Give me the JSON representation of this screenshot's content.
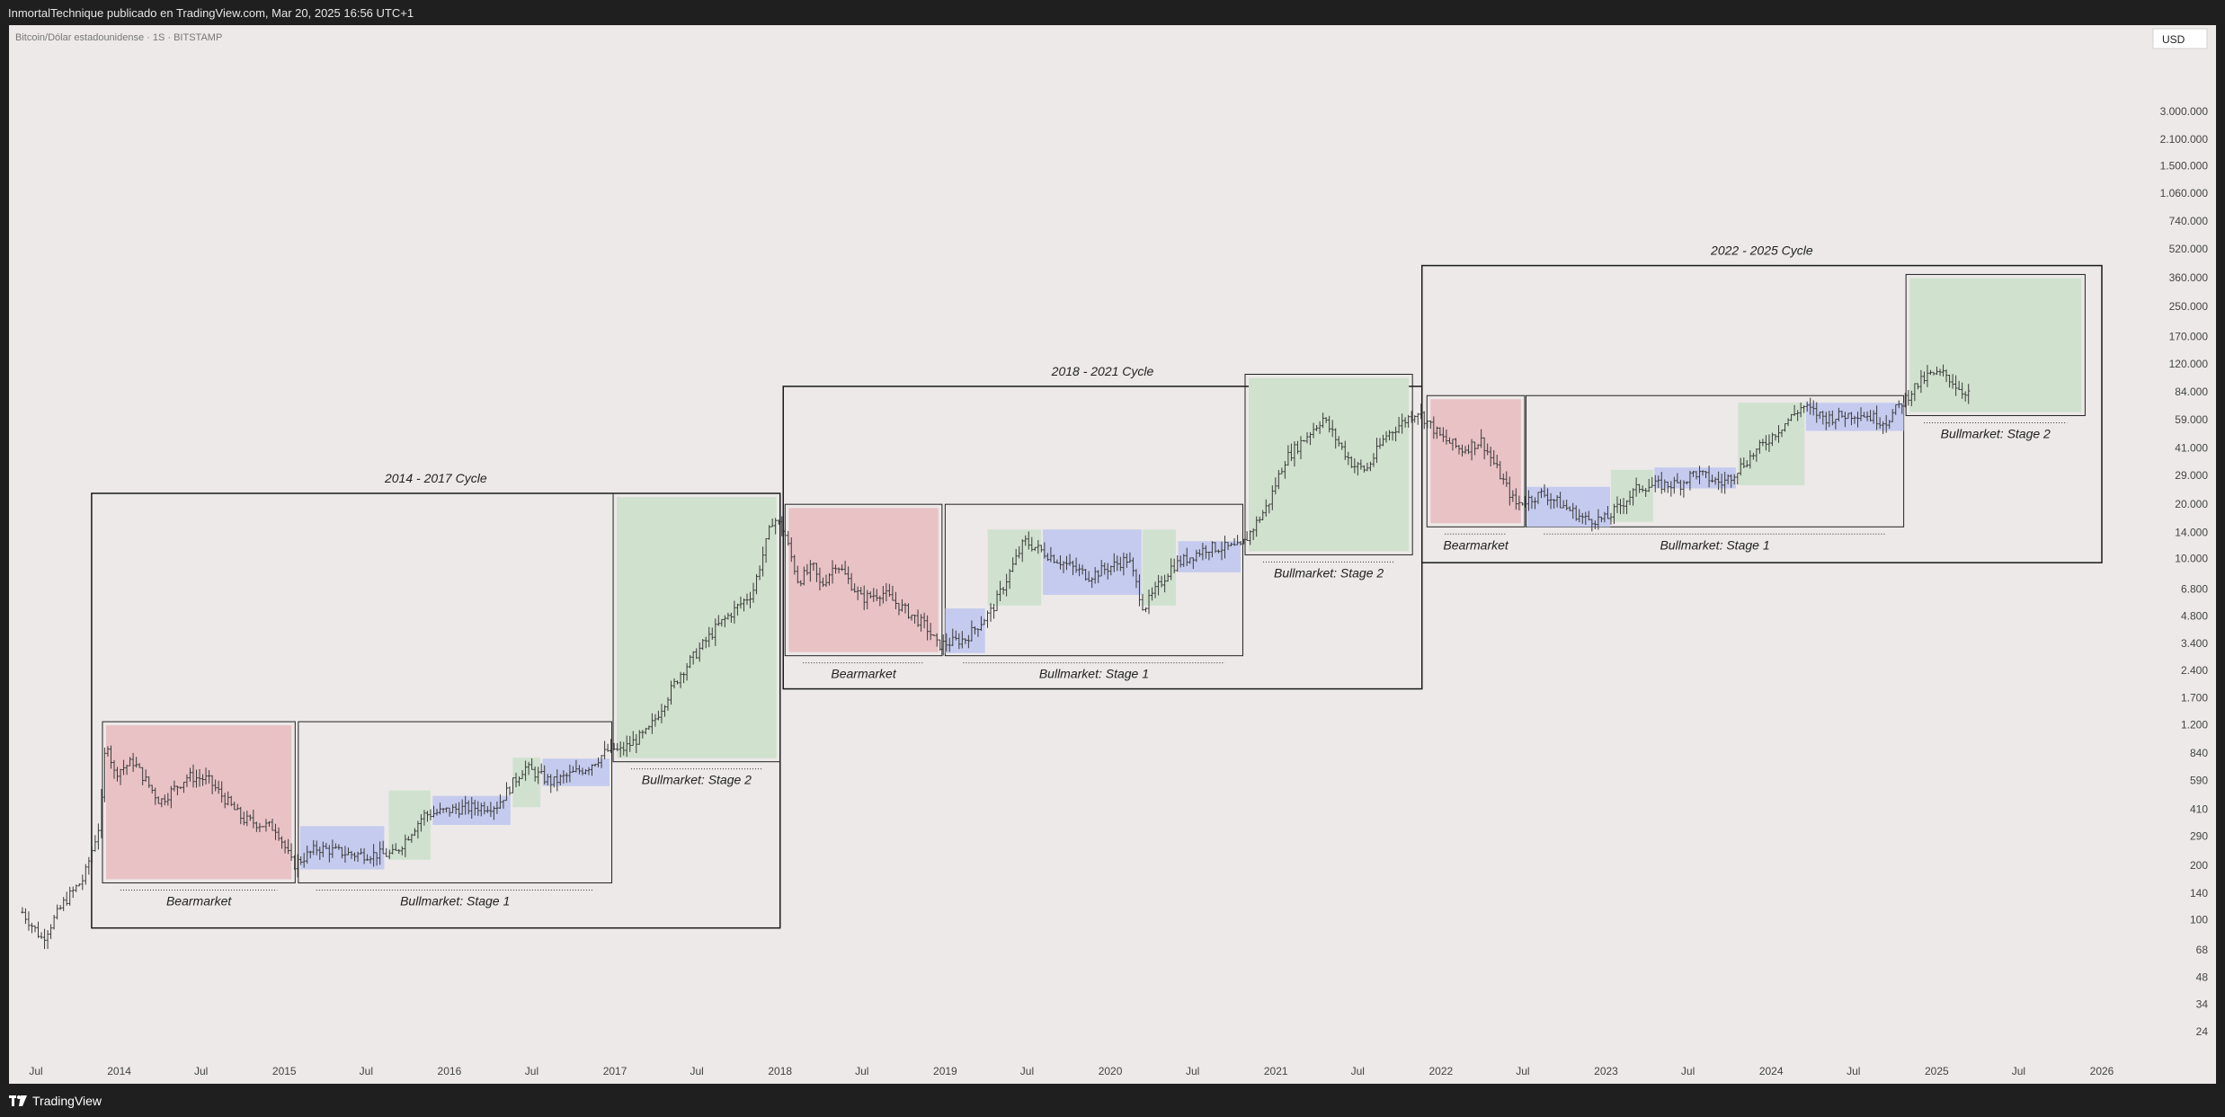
{
  "header": {
    "text": "InmortalTechnique publicado en TradingView.com, Mar 20, 2025 16:56 UTC+1"
  },
  "chart": {
    "symbol": "Bitcoin/Dólar estadounidense · 1S · BITSTAMP",
    "currency": "USD"
  },
  "footer": {
    "brand": "TradingView",
    "logo_icon": "tradingview-logo-icon"
  },
  "colors": {
    "bear": "#e9c2c6",
    "stage1_blue": "#c3c9ef",
    "stage1_green": "#cfe1cd",
    "stage2": "#d0e1cd",
    "candle": "#3a3a3a",
    "frame": "#1a1a1a"
  },
  "chart_data": {
    "type": "candlestick",
    "y_scale": "log",
    "y_unit": "USD",
    "y_ticks": [
      "3.000.000",
      "2.100.000",
      "1.500.000",
      "1.060.000",
      "740.000",
      "520.000",
      "360.000",
      "250.000",
      "170.000",
      "120.000",
      "84.000",
      "59.000",
      "41.000",
      "29.000",
      "20.000",
      "14.000",
      "10.000",
      "6.800",
      "4.800",
      "3.400",
      "2.400",
      "1.700",
      "1.200",
      "840",
      "590",
      "410",
      "290",
      "200",
      "140",
      "100",
      "68",
      "48",
      "34",
      "24"
    ],
    "x_ticks": [
      "Jul",
      "2014",
      "Jul",
      "2015",
      "Jul",
      "2016",
      "Jul",
      "2017",
      "Jul",
      "2018",
      "Jul",
      "2019",
      "Jul",
      "2020",
      "Jul",
      "2021",
      "Jul",
      "2022",
      "Jul",
      "2023",
      "Jul",
      "2024",
      "Jul",
      "2025",
      "Jul",
      "2026"
    ],
    "cycles": [
      {
        "label": "2014 - 2017 Cycle",
        "start": "2013-11-01",
        "end": "2018-01-01",
        "low": 90,
        "high": 23000
      },
      {
        "label": "2018 - 2021 Cycle",
        "start": "2018-01-08",
        "end": "2021-11-20",
        "low": 1900,
        "high": 90000
      },
      {
        "label": "2022 - 2025 Cycle",
        "start": "2021-11-20",
        "end": "2026-01-01",
        "low": 9500,
        "high": 420000
      }
    ],
    "phases": [
      {
        "label": "Bearmarket",
        "kind": "bear",
        "start": "2013-11-25",
        "end": "2015-01-25",
        "low": 160,
        "high": 1250
      },
      {
        "label": "Bullmarket: Stage 1",
        "kind": "stage1",
        "start": "2015-02-01",
        "end": "2016-12-25",
        "low": 160,
        "high": 1250
      },
      {
        "label": "Bullmarket: Stage 2",
        "kind": "stage2",
        "start": "2016-12-28",
        "end": "2018-01-01",
        "low": 750,
        "high": 23000
      },
      {
        "label": "Bearmarket",
        "kind": "bear",
        "start": "2018-01-12",
        "end": "2018-12-25",
        "low": 2900,
        "high": 20000
      },
      {
        "label": "Bullmarket: Stage 1",
        "kind": "stage1",
        "start": "2019-01-01",
        "end": "2020-10-20",
        "low": 2900,
        "high": 20000
      },
      {
        "label": "Bullmarket: Stage 2",
        "kind": "stage2",
        "start": "2020-10-25",
        "end": "2021-10-30",
        "low": 10500,
        "high": 105000
      },
      {
        "label": "Bearmarket",
        "kind": "bear",
        "start": "2021-12-01",
        "end": "2022-07-05",
        "low": 15000,
        "high": 80000
      },
      {
        "label": "Bullmarket: Stage 1",
        "kind": "stage1",
        "start": "2022-07-08",
        "end": "2024-10-20",
        "low": 15000,
        "high": 80000
      },
      {
        "label": "Bullmarket: Stage 2",
        "kind": "stage2",
        "start": "2024-10-25",
        "end": "2025-11-25",
        "low": 62000,
        "high": 375000
      }
    ],
    "zones": [
      {
        "kind": "blue",
        "start": "2015-02-05",
        "end": "2015-08-10",
        "low": 190,
        "high": 330
      },
      {
        "kind": "green",
        "start": "2015-08-20",
        "end": "2015-11-20",
        "low": 215,
        "high": 520
      },
      {
        "kind": "blue",
        "start": "2015-11-25",
        "end": "2016-05-15",
        "low": 335,
        "high": 485
      },
      {
        "kind": "green",
        "start": "2016-05-20",
        "end": "2016-07-20",
        "low": 420,
        "high": 790
      },
      {
        "kind": "blue",
        "start": "2016-07-25",
        "end": "2016-12-20",
        "low": 550,
        "high": 780
      },
      {
        "kind": "blue",
        "start": "2019-01-01",
        "end": "2019-03-30",
        "low": 3000,
        "high": 5300
      },
      {
        "kind": "green",
        "start": "2019-04-05",
        "end": "2019-08-01",
        "low": 5500,
        "high": 14500
      },
      {
        "kind": "blue",
        "start": "2019-08-05",
        "end": "2020-03-10",
        "low": 6300,
        "high": 14500
      },
      {
        "kind": "green",
        "start": "2020-03-12",
        "end": "2020-05-25",
        "low": 5500,
        "high": 14500
      },
      {
        "kind": "blue",
        "start": "2020-05-30",
        "end": "2020-10-15",
        "low": 8400,
        "high": 12500
      },
      {
        "kind": "blue",
        "start": "2022-07-10",
        "end": "2023-01-10",
        "low": 15000,
        "high": 25000
      },
      {
        "kind": "green",
        "start": "2023-01-12",
        "end": "2023-04-15",
        "low": 16000,
        "high": 31000
      },
      {
        "kind": "blue",
        "start": "2023-04-18",
        "end": "2023-10-15",
        "low": 24500,
        "high": 32000
      },
      {
        "kind": "green",
        "start": "2023-10-20",
        "end": "2024-03-15",
        "low": 25500,
        "high": 73000
      },
      {
        "kind": "blue",
        "start": "2024-03-18",
        "end": "2024-10-20",
        "low": 51000,
        "high": 73000
      }
    ],
    "price_path": [
      [
        "2013-06-01",
        110
      ],
      [
        "2013-07-15",
        78
      ],
      [
        "2013-09-01",
        125
      ],
      [
        "2013-10-15",
        170
      ],
      [
        "2013-11-20",
        350
      ],
      [
        "2013-12-03",
        1050
      ],
      [
        "2013-12-20",
        650
      ],
      [
        "2014-02-01",
        750
      ],
      [
        "2014-04-01",
        450
      ],
      [
        "2014-06-01",
        620
      ],
      [
        "2014-07-15",
        600
      ],
      [
        "2014-10-01",
        360
      ],
      [
        "2014-12-15",
        320
      ],
      [
        "2015-01-20",
        200
      ],
      [
        "2015-03-15",
        250
      ],
      [
        "2015-06-01",
        230
      ],
      [
        "2015-09-01",
        230
      ],
      [
        "2015-11-05",
        380
      ],
      [
        "2016-01-15",
        410
      ],
      [
        "2016-04-15",
        430
      ],
      [
        "2016-06-15",
        700
      ],
      [
        "2016-08-15",
        575
      ],
      [
        "2016-11-01",
        700
      ],
      [
        "2016-12-25",
        900
      ],
      [
        "2017-01-10",
        850
      ],
      [
        "2017-03-15",
        1100
      ],
      [
        "2017-05-25",
        2300
      ],
      [
        "2017-08-15",
        4200
      ],
      [
        "2017-11-01",
        6500
      ],
      [
        "2017-12-17",
        17000
      ],
      [
        "2018-01-10",
        14000
      ],
      [
        "2018-02-10",
        7500
      ],
      [
        "2018-03-15",
        9000
      ],
      [
        "2018-04-01",
        7000
      ],
      [
        "2018-05-05",
        9500
      ],
      [
        "2018-06-30",
        6000
      ],
      [
        "2018-08-15",
        6500
      ],
      [
        "2018-11-20",
        4200
      ],
      [
        "2018-12-15",
        3300
      ],
      [
        "2019-02-15",
        3600
      ],
      [
        "2019-04-15",
        5200
      ],
      [
        "2019-06-25",
        12500
      ],
      [
        "2019-09-01",
        10000
      ],
      [
        "2019-11-15",
        8000
      ],
      [
        "2020-02-10",
        10000
      ],
      [
        "2020-03-15",
        5300
      ],
      [
        "2020-05-15",
        9000
      ],
      [
        "2020-08-01",
        11500
      ],
      [
        "2020-10-15",
        11500
      ],
      [
        "2020-12-15",
        20000
      ],
      [
        "2021-01-20",
        35000
      ],
      [
        "2021-04-15",
        60000
      ],
      [
        "2021-06-20",
        33000
      ],
      [
        "2021-07-20",
        31000
      ],
      [
        "2021-09-01",
        48000
      ],
      [
        "2021-11-10",
        66000
      ],
      [
        "2022-01-01",
        47000
      ],
      [
        "2022-02-15",
        40000
      ],
      [
        "2022-04-01",
        45000
      ],
      [
        "2022-06-15",
        20000
      ],
      [
        "2022-08-15",
        23000
      ],
      [
        "2022-11-15",
        16500
      ],
      [
        "2023-01-01",
        16500
      ],
      [
        "2023-03-15",
        25000
      ],
      [
        "2023-06-15",
        26000
      ],
      [
        "2023-07-15",
        30000
      ],
      [
        "2023-09-15",
        26000
      ],
      [
        "2023-12-15",
        43000
      ],
      [
        "2024-03-10",
        70000
      ],
      [
        "2024-05-01",
        60000
      ],
      [
        "2024-07-15",
        64000
      ],
      [
        "2024-09-10",
        57000
      ],
      [
        "2024-11-15",
        90000
      ],
      [
        "2024-12-15",
        104000
      ],
      [
        "2025-01-20",
        105000
      ],
      [
        "2025-02-25",
        85000
      ],
      [
        "2025-03-18",
        84000
      ]
    ]
  }
}
